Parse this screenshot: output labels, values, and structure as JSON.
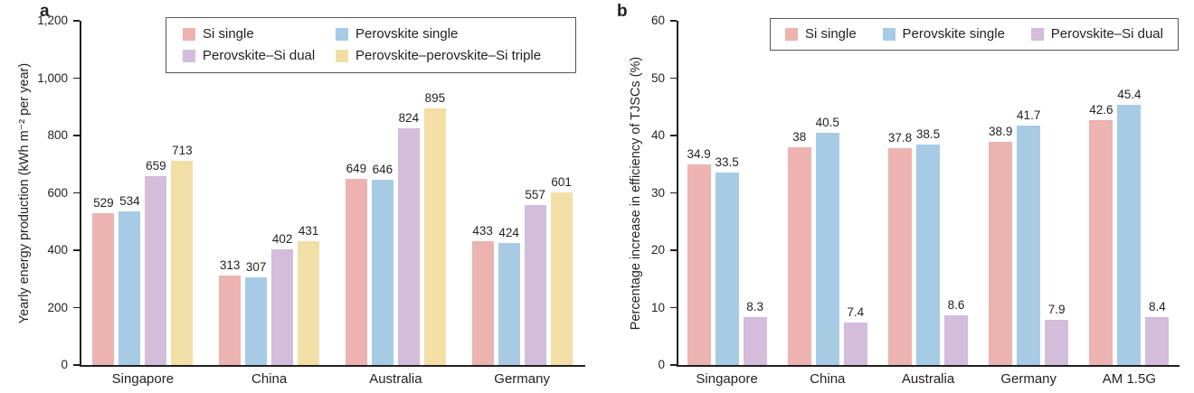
{
  "panels": [
    {
      "letter": "a"
    },
    {
      "letter": "b"
    }
  ],
  "style": {
    "axis_color": "#231f20",
    "text_color": "#231f20",
    "legend_border_color": "#55565a",
    "background": "#ffffff"
  },
  "chart_data": [
    {
      "id": "a",
      "type": "bar",
      "title": "",
      "xlabel": "",
      "ylabel": "Yearly energy production (kWh m⁻² per year)",
      "ylim": [
        0,
        1200
      ],
      "yticks": [
        "0",
        "200",
        "400",
        "600",
        "800",
        "1,000",
        "1,200"
      ],
      "grid": false,
      "legend_position": "top",
      "legend_layout": "grid-2col",
      "categories": [
        "Singapore",
        "China",
        "Australia",
        "Germany"
      ],
      "series": [
        {
          "name": "Si single",
          "color": "#ecb3b0",
          "values": [
            529,
            313,
            649,
            433
          ]
        },
        {
          "name": "Perovskite single",
          "color": "#a7cbe5",
          "values": [
            534,
            307,
            646,
            424
          ]
        },
        {
          "name": "Perovskite–Si dual",
          "color": "#d4bcdb",
          "values": [
            659,
            402,
            824,
            557
          ]
        },
        {
          "name": "Perovskite–perovskite–Si triple",
          "color": "#f2dfa6",
          "values": [
            713,
            431,
            895,
            601
          ]
        }
      ]
    },
    {
      "id": "b",
      "type": "bar",
      "title": "",
      "xlabel": "",
      "ylabel": "Percentage increase in efficiency of TJSCs (%)",
      "ylim": [
        0,
        60
      ],
      "yticks": [
        "0",
        "10",
        "20",
        "30",
        "40",
        "50",
        "60"
      ],
      "grid": false,
      "legend_position": "top",
      "legend_layout": "row",
      "categories": [
        "Singapore",
        "China",
        "Australia",
        "Germany",
        "AM 1.5G"
      ],
      "series": [
        {
          "name": "Si single",
          "color": "#ecb3b0",
          "values": [
            34.9,
            38,
            37.8,
            38.9,
            42.6
          ]
        },
        {
          "name": "Perovskite single",
          "color": "#a7cbe5",
          "values": [
            33.5,
            40.5,
            38.5,
            41.7,
            45.4
          ]
        },
        {
          "name": "Perovskite–Si dual",
          "color": "#d4bcdb",
          "values": [
            8.3,
            7.4,
            8.6,
            7.9,
            8.4
          ]
        }
      ]
    }
  ]
}
